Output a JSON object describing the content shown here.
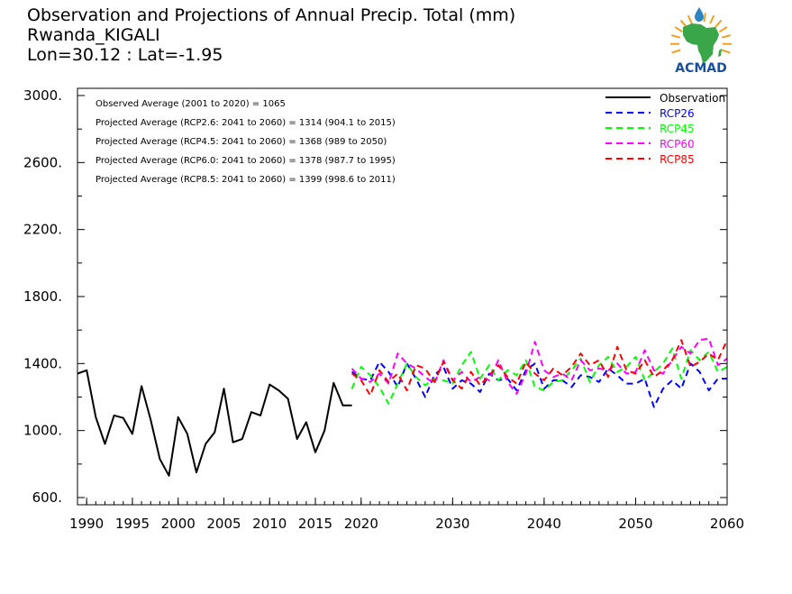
{
  "header": {
    "title": "Observation and Projections of Annual Precip. Total (mm)",
    "location": "Rwanda_KIGALI",
    "coords": "Lon=30.12 : Lat=-1.95"
  },
  "logo": {
    "text": "ACMAD",
    "icon": "acmad-africa-logo-icon",
    "colors": {
      "africa": "#3aa64a",
      "drop": "#2e86c1",
      "rays": "#f0a020",
      "text": "#1a4f9c"
    }
  },
  "chart_data": {
    "type": "line",
    "xlim": [
      1989,
      2060
    ],
    "ylim": [
      600,
      3000
    ],
    "xticks": [
      1990,
      1995,
      2000,
      2005,
      2010,
      2015,
      2020,
      2030,
      2040,
      2050,
      2060
    ],
    "xticklabels": [
      "1990",
      "1995",
      "2000",
      "2005",
      "2010",
      "2015",
      "2020",
      "2030",
      "2040",
      "2050",
      "2060"
    ],
    "yticks": [
      600,
      1000,
      1400,
      1800,
      2200,
      2600,
      3000
    ],
    "yticklabels": [
      "600.",
      "1000.",
      "1400.",
      "1800.",
      "2200.",
      "2600.",
      "3000."
    ],
    "annotations": [
      "Observed Average (2001 to 2020) = 1065",
      "Projected Average (RCP2.6: 2041 to 2060) = 1314 (904.1 to 2015)",
      "Projected Average (RCP4.5: 2041 to 2060) = 1368 (989 to 2050)",
      "Projected Average (RCP6.0: 2041 to 2060) = 1378 (987.7 to 1995)",
      "Projected Average (RCP8.5: 2041 to 2060) = 1399 (998.6 to 2011)"
    ],
    "legend_position": "top-right",
    "series": [
      {
        "name": "Observation",
        "color": "#000000",
        "dash": false,
        "x": [
          1989,
          1990,
          1991,
          1992,
          1993,
          1994,
          1995,
          1996,
          1997,
          1998,
          1999,
          2000,
          2001,
          2002,
          2003,
          2004,
          2005,
          2006,
          2007,
          2008,
          2009,
          2010,
          2011,
          2012,
          2013,
          2014,
          2015,
          2016,
          2017,
          2018,
          2019
        ],
        "y": [
          1340,
          1360,
          1080,
          920,
          1090,
          1075,
          980,
          1265,
          1065,
          830,
          730,
          1080,
          980,
          750,
          920,
          990,
          1250,
          930,
          950,
          1110,
          1090,
          1275,
          1240,
          1190,
          950,
          1050,
          870,
          1000,
          1285,
          1150,
          1150
        ]
      },
      {
        "name": "RCP26",
        "color": "#0000ff",
        "dash": true,
        "x": [
          2019,
          2020,
          2021,
          2022,
          2023,
          2024,
          2025,
          2026,
          2027,
          2028,
          2029,
          2030,
          2031,
          2032,
          2033,
          2034,
          2035,
          2036,
          2037,
          2038,
          2039,
          2040,
          2041,
          2042,
          2043,
          2044,
          2045,
          2046,
          2047,
          2048,
          2049,
          2050,
          2051,
          2052,
          2053,
          2054,
          2055,
          2056,
          2057,
          2058,
          2059,
          2060
        ],
        "y": [
          1350,
          1310,
          1300,
          1410,
          1350,
          1260,
          1400,
          1310,
          1200,
          1330,
          1380,
          1250,
          1300,
          1280,
          1230,
          1340,
          1300,
          1310,
          1240,
          1360,
          1400,
          1250,
          1300,
          1300,
          1260,
          1330,
          1320,
          1290,
          1370,
          1330,
          1280,
          1280,
          1310,
          1140,
          1250,
          1300,
          1250,
          1400,
          1350,
          1240,
          1310,
          1310
        ]
      },
      {
        "name": "RCP45",
        "color": "#00ff00",
        "dash": true,
        "x": [
          2019,
          2020,
          2021,
          2022,
          2023,
          2024,
          2025,
          2026,
          2027,
          2028,
          2029,
          2030,
          2031,
          2032,
          2033,
          2034,
          2035,
          2036,
          2037,
          2038,
          2039,
          2040,
          2041,
          2042,
          2043,
          2044,
          2045,
          2046,
          2047,
          2048,
          2049,
          2050,
          2051,
          2052,
          2053,
          2054,
          2055,
          2056,
          2057,
          2058,
          2059,
          2060
        ],
        "y": [
          1250,
          1380,
          1330,
          1260,
          1160,
          1280,
          1400,
          1320,
          1270,
          1310,
          1300,
          1280,
          1390,
          1470,
          1310,
          1390,
          1300,
          1360,
          1330,
          1420,
          1260,
          1240,
          1290,
          1300,
          1360,
          1430,
          1290,
          1390,
          1440,
          1350,
          1380,
          1440,
          1300,
          1350,
          1400,
          1490,
          1310,
          1480,
          1420,
          1470,
          1350,
          1380
        ]
      },
      {
        "name": "RCP60",
        "color": "#ff00ff",
        "dash": true,
        "x": [
          2019,
          2020,
          2021,
          2022,
          2023,
          2024,
          2025,
          2026,
          2027,
          2028,
          2029,
          2030,
          2031,
          2032,
          2033,
          2034,
          2035,
          2036,
          2037,
          2038,
          2039,
          2040,
          2041,
          2042,
          2043,
          2044,
          2045,
          2046,
          2047,
          2048,
          2049,
          2050,
          2051,
          2052,
          2053,
          2054,
          2055,
          2056,
          2057,
          2058,
          2059,
          2060
        ],
        "y": [
          1370,
          1310,
          1290,
          1340,
          1280,
          1460,
          1400,
          1370,
          1320,
          1280,
          1420,
          1300,
          1350,
          1290,
          1320,
          1300,
          1420,
          1290,
          1220,
          1340,
          1530,
          1360,
          1320,
          1340,
          1300,
          1420,
          1360,
          1370,
          1360,
          1400,
          1340,
          1350,
          1480,
          1360,
          1340,
          1420,
          1500,
          1460,
          1540,
          1550,
          1390,
          1430
        ]
      },
      {
        "name": "RCP85",
        "color": "#ff0000",
        "dash": true,
        "x": [
          2019,
          2020,
          2021,
          2022,
          2023,
          2024,
          2025,
          2026,
          2027,
          2028,
          2029,
          2030,
          2031,
          2032,
          2033,
          2034,
          2035,
          2036,
          2037,
          2038,
          2039,
          2040,
          2041,
          2042,
          2043,
          2044,
          2045,
          2046,
          2047,
          2048,
          2049,
          2050,
          2051,
          2052,
          2053,
          2054,
          2055,
          2056,
          2057,
          2058,
          2059,
          2060
        ],
        "y": [
          1340,
          1300,
          1210,
          1360,
          1290,
          1340,
          1240,
          1390,
          1370,
          1290,
          1410,
          1300,
          1250,
          1350,
          1270,
          1330,
          1390,
          1320,
          1280,
          1410,
          1340,
          1300,
          1370,
          1330,
          1380,
          1460,
          1390,
          1420,
          1320,
          1500,
          1360,
          1340,
          1420,
          1320,
          1360,
          1420,
          1540,
          1380,
          1410,
          1460,
          1420,
          1540
        ]
      }
    ]
  }
}
